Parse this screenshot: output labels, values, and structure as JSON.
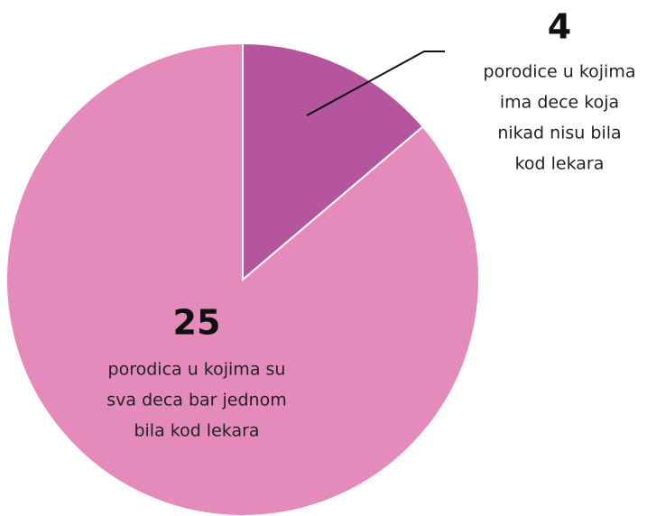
{
  "chart_data": {
    "type": "pie",
    "values": [
      4,
      25
    ],
    "colors": [
      "#b5559e",
      "#e48bbb"
    ],
    "labels": [
      [
        "porodice u kojima",
        "ima dece koja",
        "nikad nisu bila",
        "kod lekara"
      ],
      [
        "porodica u kojima su",
        "sva deca bar jednom",
        "bila kod lekara"
      ]
    ]
  }
}
